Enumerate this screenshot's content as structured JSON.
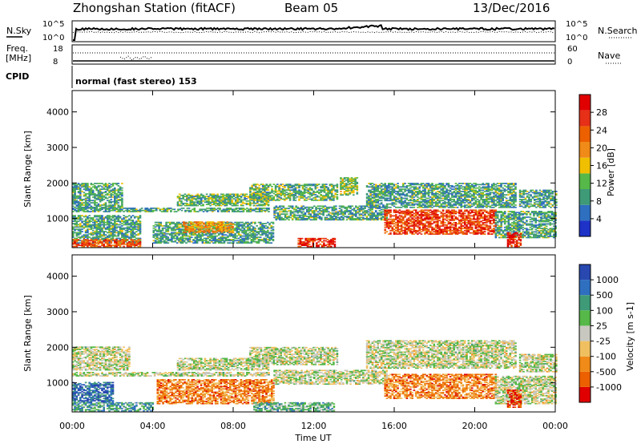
{
  "header": {
    "station": "Zhongshan Station (fitACF)",
    "beam": "Beam 05",
    "date": "13/Dec/2016"
  },
  "panels": {
    "nsky": {
      "left_label": "N.Sky",
      "right_label": "N.Search",
      "left_ticks": [
        "10^5",
        "10^0"
      ],
      "right_ticks": [
        "10^5",
        "10^0"
      ]
    },
    "freq": {
      "left_label_1": "Freq.",
      "left_label_2": "[MHz]",
      "right_label": "Nave",
      "left_ticks": [
        "18",
        "8"
      ],
      "right_ticks": [
        "60",
        "0"
      ]
    },
    "cpid": {
      "label": "CPID",
      "text": "normal (fast stereo) 153"
    }
  },
  "colors": {
    "power": [
      "#1e32c8",
      "#2f6fc0",
      "#3f9a78",
      "#55b848",
      "#f0c000",
      "#f08a18",
      "#ec6000",
      "#e63018",
      "#e00000"
    ],
    "velocity": [
      "#2848b0",
      "#2f6fc0",
      "#3f9a78",
      "#55b848",
      "#c8c8c0",
      "#f0c060",
      "#f08a18",
      "#ec6000",
      "#e00000"
    ]
  },
  "chart_data": [
    {
      "type": "heatmap",
      "name": "Power",
      "ylabel": "Slant Range [km]",
      "xlim": [
        "00:00",
        "24:00"
      ],
      "ylim": [
        180,
        4600
      ],
      "yticks": [
        "1000",
        "2000",
        "3000",
        "4000"
      ],
      "xticks": [],
      "colorbar": {
        "label": "Power [dB]",
        "range": [
          0,
          32
        ],
        "ticks": [
          "4",
          "8",
          "12",
          "16",
          "20",
          "24",
          "28"
        ]
      },
      "regions": [
        {
          "t0": 0.0,
          "t1": 2.5,
          "r0": 1300,
          "r1": 2000,
          "level": 0.3
        },
        {
          "t0": 0.0,
          "t1": 9.8,
          "r0": 1180,
          "r1": 1280,
          "level": 0.3
        },
        {
          "t0": 0.0,
          "t1": 3.4,
          "r0": 300,
          "r1": 1100,
          "level": 0.3
        },
        {
          "t0": 0.0,
          "t1": 3.4,
          "r0": 200,
          "r1": 400,
          "level": 0.75
        },
        {
          "t0": 5.2,
          "t1": 9.7,
          "r0": 1350,
          "r1": 1700,
          "level": 0.35
        },
        {
          "t0": 4.0,
          "t1": 10.0,
          "r0": 300,
          "r1": 900,
          "level": 0.3
        },
        {
          "t0": 5.5,
          "t1": 8.0,
          "r0": 600,
          "r1": 900,
          "level": 0.6
        },
        {
          "t0": 8.8,
          "t1": 13.2,
          "r0": 1500,
          "r1": 1950,
          "level": 0.35
        },
        {
          "t0": 10.0,
          "t1": 15.6,
          "r0": 950,
          "r1": 1350,
          "level": 0.3
        },
        {
          "t0": 11.2,
          "t1": 13.0,
          "r0": 200,
          "r1": 450,
          "level": 0.85
        },
        {
          "t0": 13.3,
          "t1": 14.2,
          "r0": 1650,
          "r1": 2150,
          "level": 0.4
        },
        {
          "t0": 14.6,
          "t1": 22.0,
          "r0": 1300,
          "r1": 2000,
          "level": 0.3
        },
        {
          "t0": 15.5,
          "t1": 21.0,
          "r0": 550,
          "r1": 1250,
          "level": 0.8
        },
        {
          "t0": 21.0,
          "t1": 24.0,
          "r0": 450,
          "r1": 1200,
          "level": 0.3
        },
        {
          "t0": 22.2,
          "t1": 24.0,
          "r0": 1300,
          "r1": 1800,
          "level": 0.3
        },
        {
          "t0": 21.6,
          "t1": 22.3,
          "r0": 200,
          "r1": 600,
          "level": 0.9
        }
      ]
    },
    {
      "type": "heatmap",
      "name": "Velocity",
      "ylabel": "Slant Range [km]",
      "xlabel": "Time UT",
      "xlim": [
        "00:00",
        "24:00"
      ],
      "ylim": [
        180,
        4600
      ],
      "yticks": [
        "1000",
        "2000",
        "3000",
        "4000"
      ],
      "xticks": [
        "00:00",
        "04:00",
        "08:00",
        "12:00",
        "16:00",
        "20:00",
        "00:00"
      ],
      "colorbar": {
        "label": "Velocity [m s-1]",
        "ticks": [
          "1000",
          "500",
          "100",
          "25",
          "-25",
          "-100",
          "-500",
          "-1000"
        ]
      },
      "regions": [
        {
          "t0": 0.0,
          "t1": 2.8,
          "r0": 1350,
          "r1": 2000,
          "level": 0.5
        },
        {
          "t0": 0.0,
          "t1": 9.8,
          "r0": 1180,
          "r1": 1280,
          "level": 0.5
        },
        {
          "t0": 0.0,
          "t1": 4.0,
          "r0": 200,
          "r1": 450,
          "level": 0.3
        },
        {
          "t0": 0.0,
          "t1": 2.0,
          "r0": 450,
          "r1": 1000,
          "level": 0.15
        },
        {
          "t0": 4.2,
          "t1": 10.0,
          "r0": 400,
          "r1": 1100,
          "level": 0.75
        },
        {
          "t0": 5.2,
          "t1": 9.7,
          "r0": 1350,
          "r1": 1700,
          "level": 0.5
        },
        {
          "t0": 8.8,
          "t1": 13.2,
          "r0": 1500,
          "r1": 2000,
          "level": 0.5
        },
        {
          "t0": 10.0,
          "t1": 15.6,
          "r0": 950,
          "r1": 1350,
          "level": 0.5
        },
        {
          "t0": 9.0,
          "t1": 13.0,
          "r0": 200,
          "r1": 450,
          "level": 0.35
        },
        {
          "t0": 14.6,
          "t1": 22.0,
          "r0": 1400,
          "r1": 2200,
          "level": 0.5
        },
        {
          "t0": 15.5,
          "t1": 21.0,
          "r0": 550,
          "r1": 1250,
          "level": 0.75
        },
        {
          "t0": 21.0,
          "t1": 24.0,
          "r0": 400,
          "r1": 1200,
          "level": 0.5
        },
        {
          "t0": 22.2,
          "t1": 24.0,
          "r0": 1300,
          "r1": 1800,
          "level": 0.5
        },
        {
          "t0": 21.6,
          "t1": 22.3,
          "r0": 300,
          "r1": 800,
          "level": 0.9
        }
      ]
    }
  ],
  "footer": {
    "xlabel": "Time UT"
  }
}
